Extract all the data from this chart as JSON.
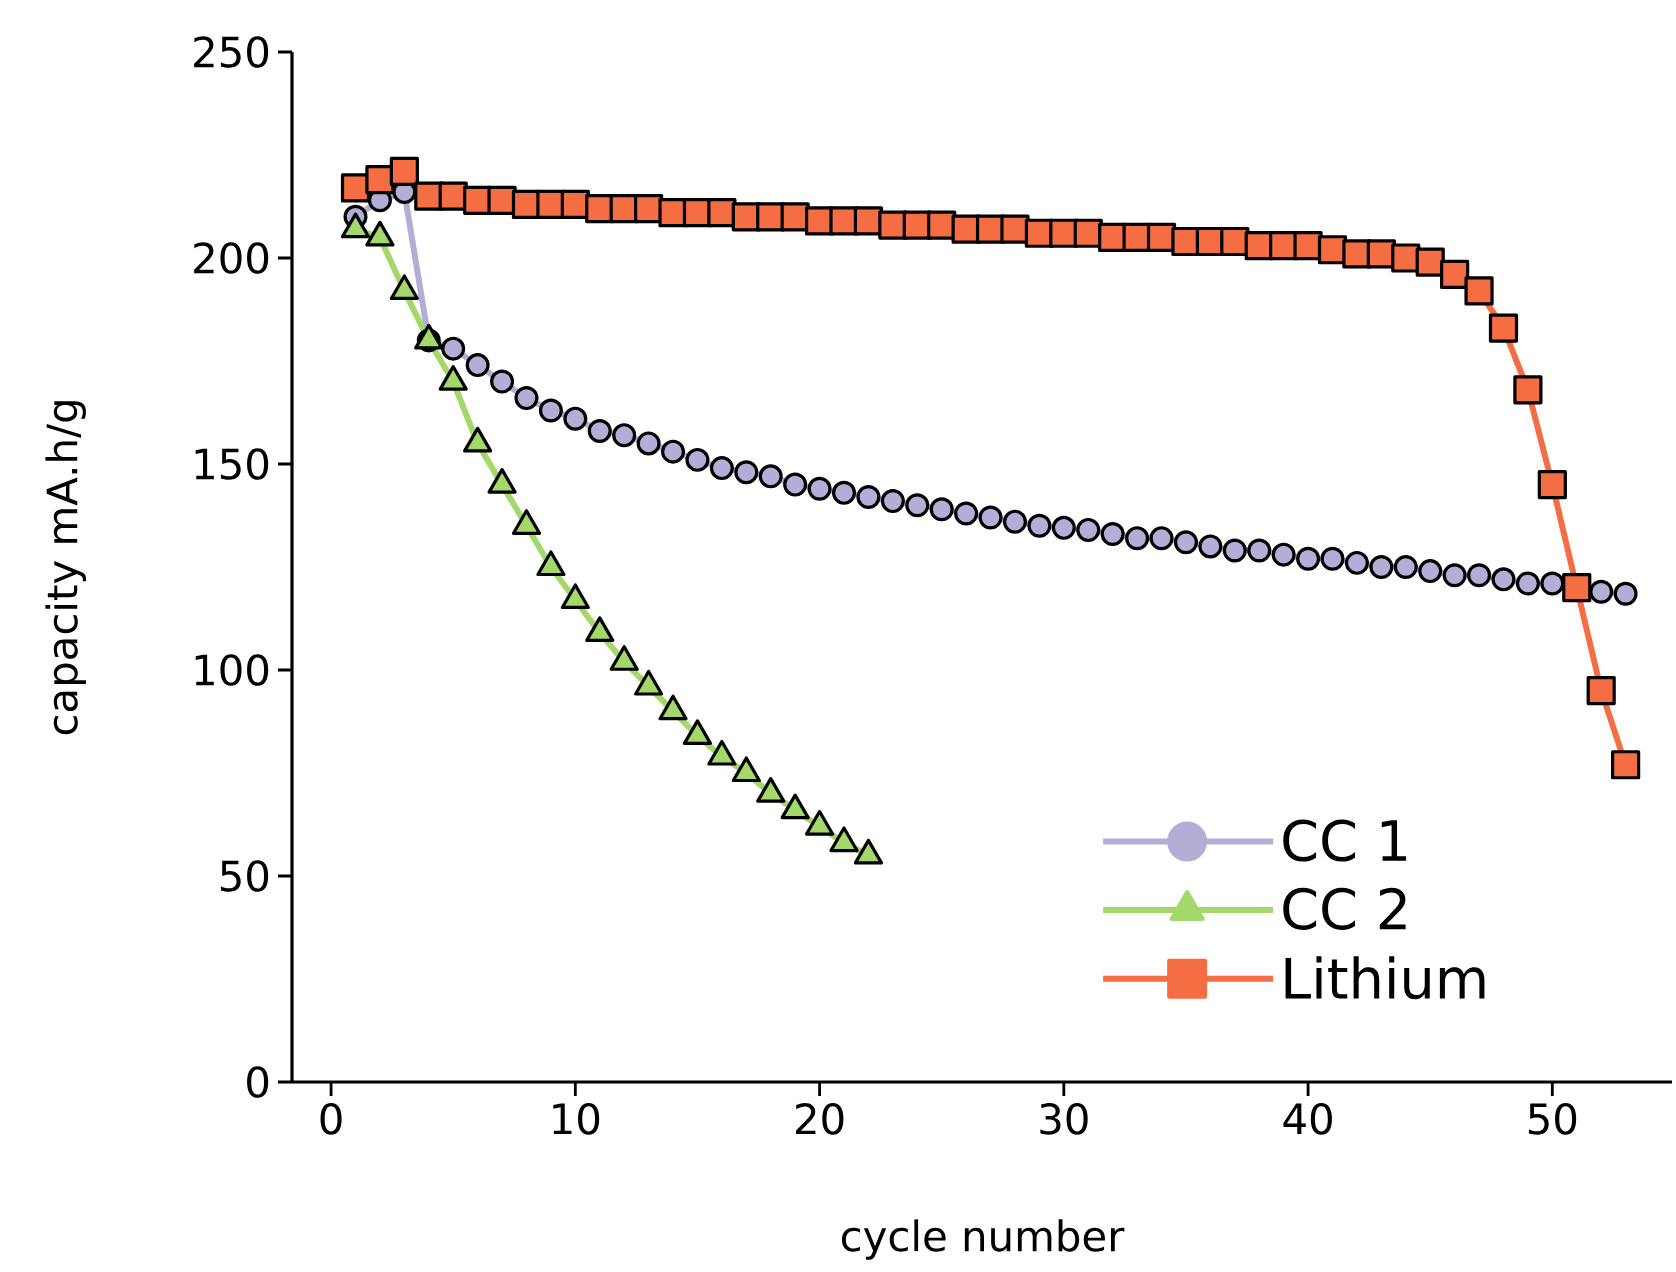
{
  "chart_data": {
    "type": "line",
    "xlabel": "cycle number",
    "ylabel": "capacity mA.h/g",
    "xlim": [
      -1.6,
      54.9
    ],
    "ylim": [
      0,
      250
    ],
    "xticks": [
      0,
      10,
      20,
      30,
      40,
      50
    ],
    "yticks": [
      0,
      50,
      100,
      150,
      200,
      250
    ],
    "legend": "bottom right",
    "line_style": "solid",
    "series": [
      {
        "name": "CC 1",
        "color": "#b3aed6",
        "marker": "circle",
        "x": [
          1,
          2,
          3,
          4,
          5,
          6,
          7,
          8,
          9,
          10,
          11,
          12,
          13,
          14,
          15,
          16,
          17,
          18,
          19,
          20,
          21,
          22,
          23,
          24,
          25,
          26,
          27,
          28,
          29,
          30,
          31,
          32,
          33,
          34,
          35,
          36,
          37,
          38,
          39,
          40,
          41,
          42,
          43,
          44,
          45,
          46,
          47,
          48,
          49,
          50,
          51,
          52,
          53
        ],
        "values": [
          210,
          214,
          216,
          180,
          178,
          174,
          170,
          166,
          163,
          161,
          158,
          157,
          155,
          153,
          151,
          149,
          148,
          147,
          145,
          144,
          143,
          142,
          141,
          140,
          139,
          138,
          137,
          136,
          135,
          134.5,
          134,
          133,
          132,
          132,
          131,
          130,
          129,
          129,
          128,
          127,
          127,
          126,
          125,
          125,
          124,
          123,
          123,
          122,
          121,
          121,
          120,
          119,
          118.5
        ]
      },
      {
        "name": "CC 2",
        "color": "#a5d86b",
        "marker": "triangle",
        "x": [
          1,
          2,
          3,
          4,
          5,
          6,
          7,
          8,
          9,
          10,
          11,
          12,
          13,
          14,
          15,
          16,
          17,
          18,
          19,
          20,
          21,
          22
        ],
        "values": [
          207,
          205,
          192,
          180,
          170,
          155,
          145,
          135,
          125,
          117,
          109,
          102,
          96,
          90,
          84,
          79,
          75,
          70,
          66,
          62,
          58,
          55
        ]
      },
      {
        "name": "Lithium",
        "color": "#f46d43",
        "marker": "square",
        "x": [
          1,
          2,
          3,
          4,
          5,
          6,
          7,
          8,
          9,
          10,
          11,
          12,
          13,
          14,
          15,
          16,
          17,
          18,
          19,
          20,
          21,
          22,
          23,
          24,
          25,
          26,
          27,
          28,
          29,
          30,
          31,
          32,
          33,
          34,
          35,
          36,
          37,
          38,
          39,
          40,
          41,
          42,
          43,
          44,
          45,
          46,
          47,
          48,
          49,
          50,
          51,
          52,
          53
        ],
        "values": [
          217,
          219,
          221,
          215,
          215,
          214,
          214,
          213,
          213,
          213,
          212,
          212,
          212,
          211,
          211,
          211,
          210,
          210,
          210,
          209,
          209,
          209,
          208,
          208,
          208,
          207,
          207,
          207,
          206,
          206,
          206,
          205,
          205,
          205,
          204,
          204,
          204,
          203,
          203,
          203,
          202,
          201,
          201,
          200,
          199,
          196,
          192,
          183,
          168,
          145,
          120,
          95,
          77
        ]
      }
    ]
  }
}
